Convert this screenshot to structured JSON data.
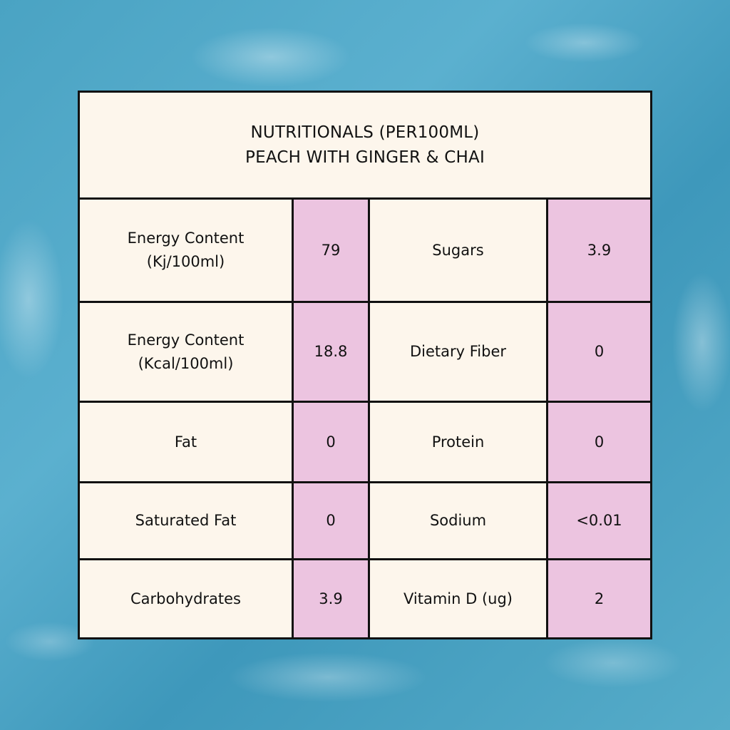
{
  "header": {
    "line1": "NUTRITIONALS (PER100ML)",
    "line2": "PEACH WITH GINGER & CHAI"
  },
  "colors": {
    "background_water": "#4aa3c3",
    "panel": "#fdf6ec",
    "value_cell": "#ecc4e0",
    "border": "#111111"
  },
  "rows": [
    {
      "label1": "Energy Content",
      "label1b": "(Kj/100ml)",
      "value1": "79",
      "label2": "Sugars",
      "value2": "3.9"
    },
    {
      "label1": "Energy Content",
      "label1b": "(Kcal/100ml)",
      "value1": "18.8",
      "label2": "Dietary Fiber",
      "value2": "0"
    },
    {
      "label1": "Fat",
      "label1b": "",
      "value1": "0",
      "label2": "Protein",
      "value2": "0"
    },
    {
      "label1": "Saturated Fat",
      "label1b": "",
      "value1": "0",
      "label2": "Sodium",
      "value2": "<0.01"
    },
    {
      "label1": "Carbohydrates",
      "label1b": "",
      "value1": "3.9",
      "label2": "Vitamin D (ug)",
      "value2": "2"
    }
  ]
}
